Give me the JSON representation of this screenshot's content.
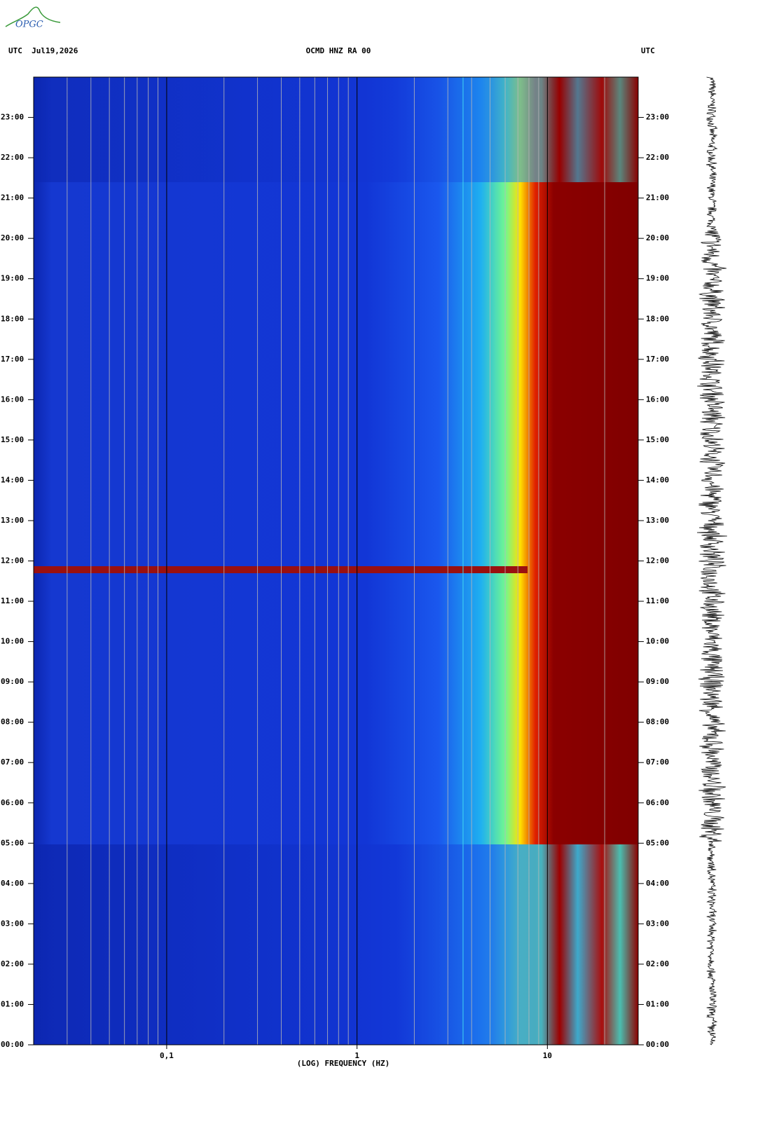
{
  "chart_data": {
    "type": "spectrogram",
    "logo": "OPGC",
    "header_left": "UTC  Jul19,2026",
    "title": "OCMD HNZ RA 00",
    "header_right": "UTC",
    "x_label": "(LOG) FREQUENCY (HZ)",
    "x_log": true,
    "xlim": [
      0.02,
      30
    ],
    "xticks": [
      {
        "value": 0.1,
        "label": "0,1"
      },
      1,
      10
    ],
    "xminorticks": [
      0.03,
      0.04,
      0.05,
      0.06,
      0.07,
      0.08,
      0.09,
      0.2,
      0.3,
      0.4,
      0.5,
      0.6,
      0.7,
      0.8,
      0.9,
      2,
      3,
      4,
      5,
      6,
      7,
      8,
      9,
      20
    ],
    "ylim": [
      0,
      24
    ],
    "yticks": [
      {
        "value": 0,
        "label": "00:00"
      },
      {
        "value": 1,
        "label": "01:00"
      },
      {
        "value": 2,
        "label": "02:00"
      },
      {
        "value": 3,
        "label": "03:00"
      },
      {
        "value": 4,
        "label": "04:00"
      },
      {
        "value": 5,
        "label": "05:00"
      },
      {
        "value": 6,
        "label": "06:00"
      },
      {
        "value": 7,
        "label": "07:00"
      },
      {
        "value": 8,
        "label": "08:00"
      },
      {
        "value": 9,
        "label": "09:00"
      },
      {
        "value": 10,
        "label": "10:00"
      },
      {
        "value": 11,
        "label": "11:00"
      },
      {
        "value": 12,
        "label": "12:00"
      },
      {
        "value": 13,
        "label": "13:00"
      },
      {
        "value": 14,
        "label": "14:00"
      },
      {
        "value": 15,
        "label": "15:00"
      },
      {
        "value": 16,
        "label": "16:00"
      },
      {
        "value": 17,
        "label": "17:00"
      },
      {
        "value": 18,
        "label": "18:00"
      },
      {
        "value": 19,
        "label": "19:00"
      },
      {
        "value": 20,
        "label": "20:00"
      },
      {
        "value": 21,
        "label": "21:00"
      },
      {
        "value": 22,
        "label": "22:00"
      },
      {
        "value": 23,
        "label": "23:00"
      }
    ]
  }
}
